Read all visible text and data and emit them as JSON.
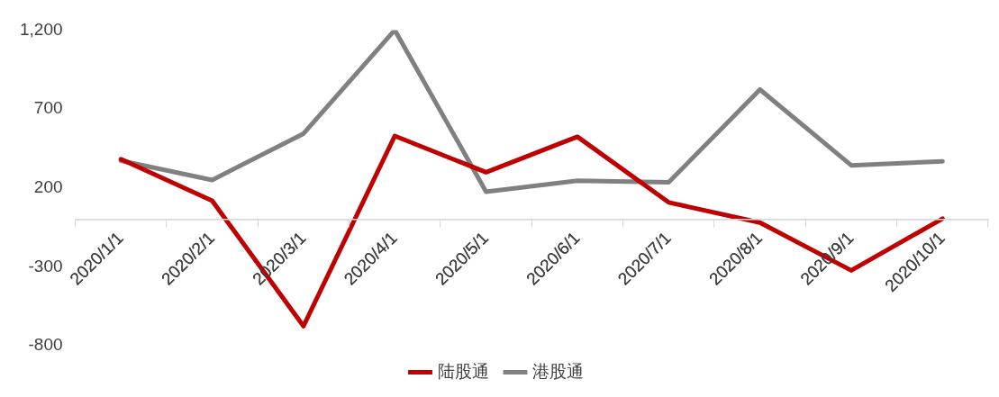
{
  "chart_data": {
    "type": "line",
    "categories": [
      "2020/1/1",
      "2020/2/1",
      "2020/3/1",
      "2020/4/1",
      "2020/5/1",
      "2020/6/1",
      "2020/7/1",
      "2020/8/1",
      "2020/9/1",
      "2020/10/1"
    ],
    "series": [
      {
        "name": "陆股通",
        "color": "#c00000",
        "values": [
          382,
          118,
          -676,
          529,
          299,
          524,
          108,
          -20,
          -323,
          5
        ]
      },
      {
        "name": "港股通",
        "color": "#808080",
        "values": [
          372,
          250,
          544,
          1200,
          176,
          245,
          235,
          823,
          343,
          368
        ]
      }
    ],
    "ylim": [
      -800,
      1200
    ],
    "yticks": [
      -800,
      -300,
      200,
      {
        "value": 700,
        "label": "700"
      },
      {
        "value": 1200,
        "label": "1,200"
      }
    ],
    "grid": false,
    "legend": "bottom",
    "marker": "none",
    "line_style": "solid"
  }
}
